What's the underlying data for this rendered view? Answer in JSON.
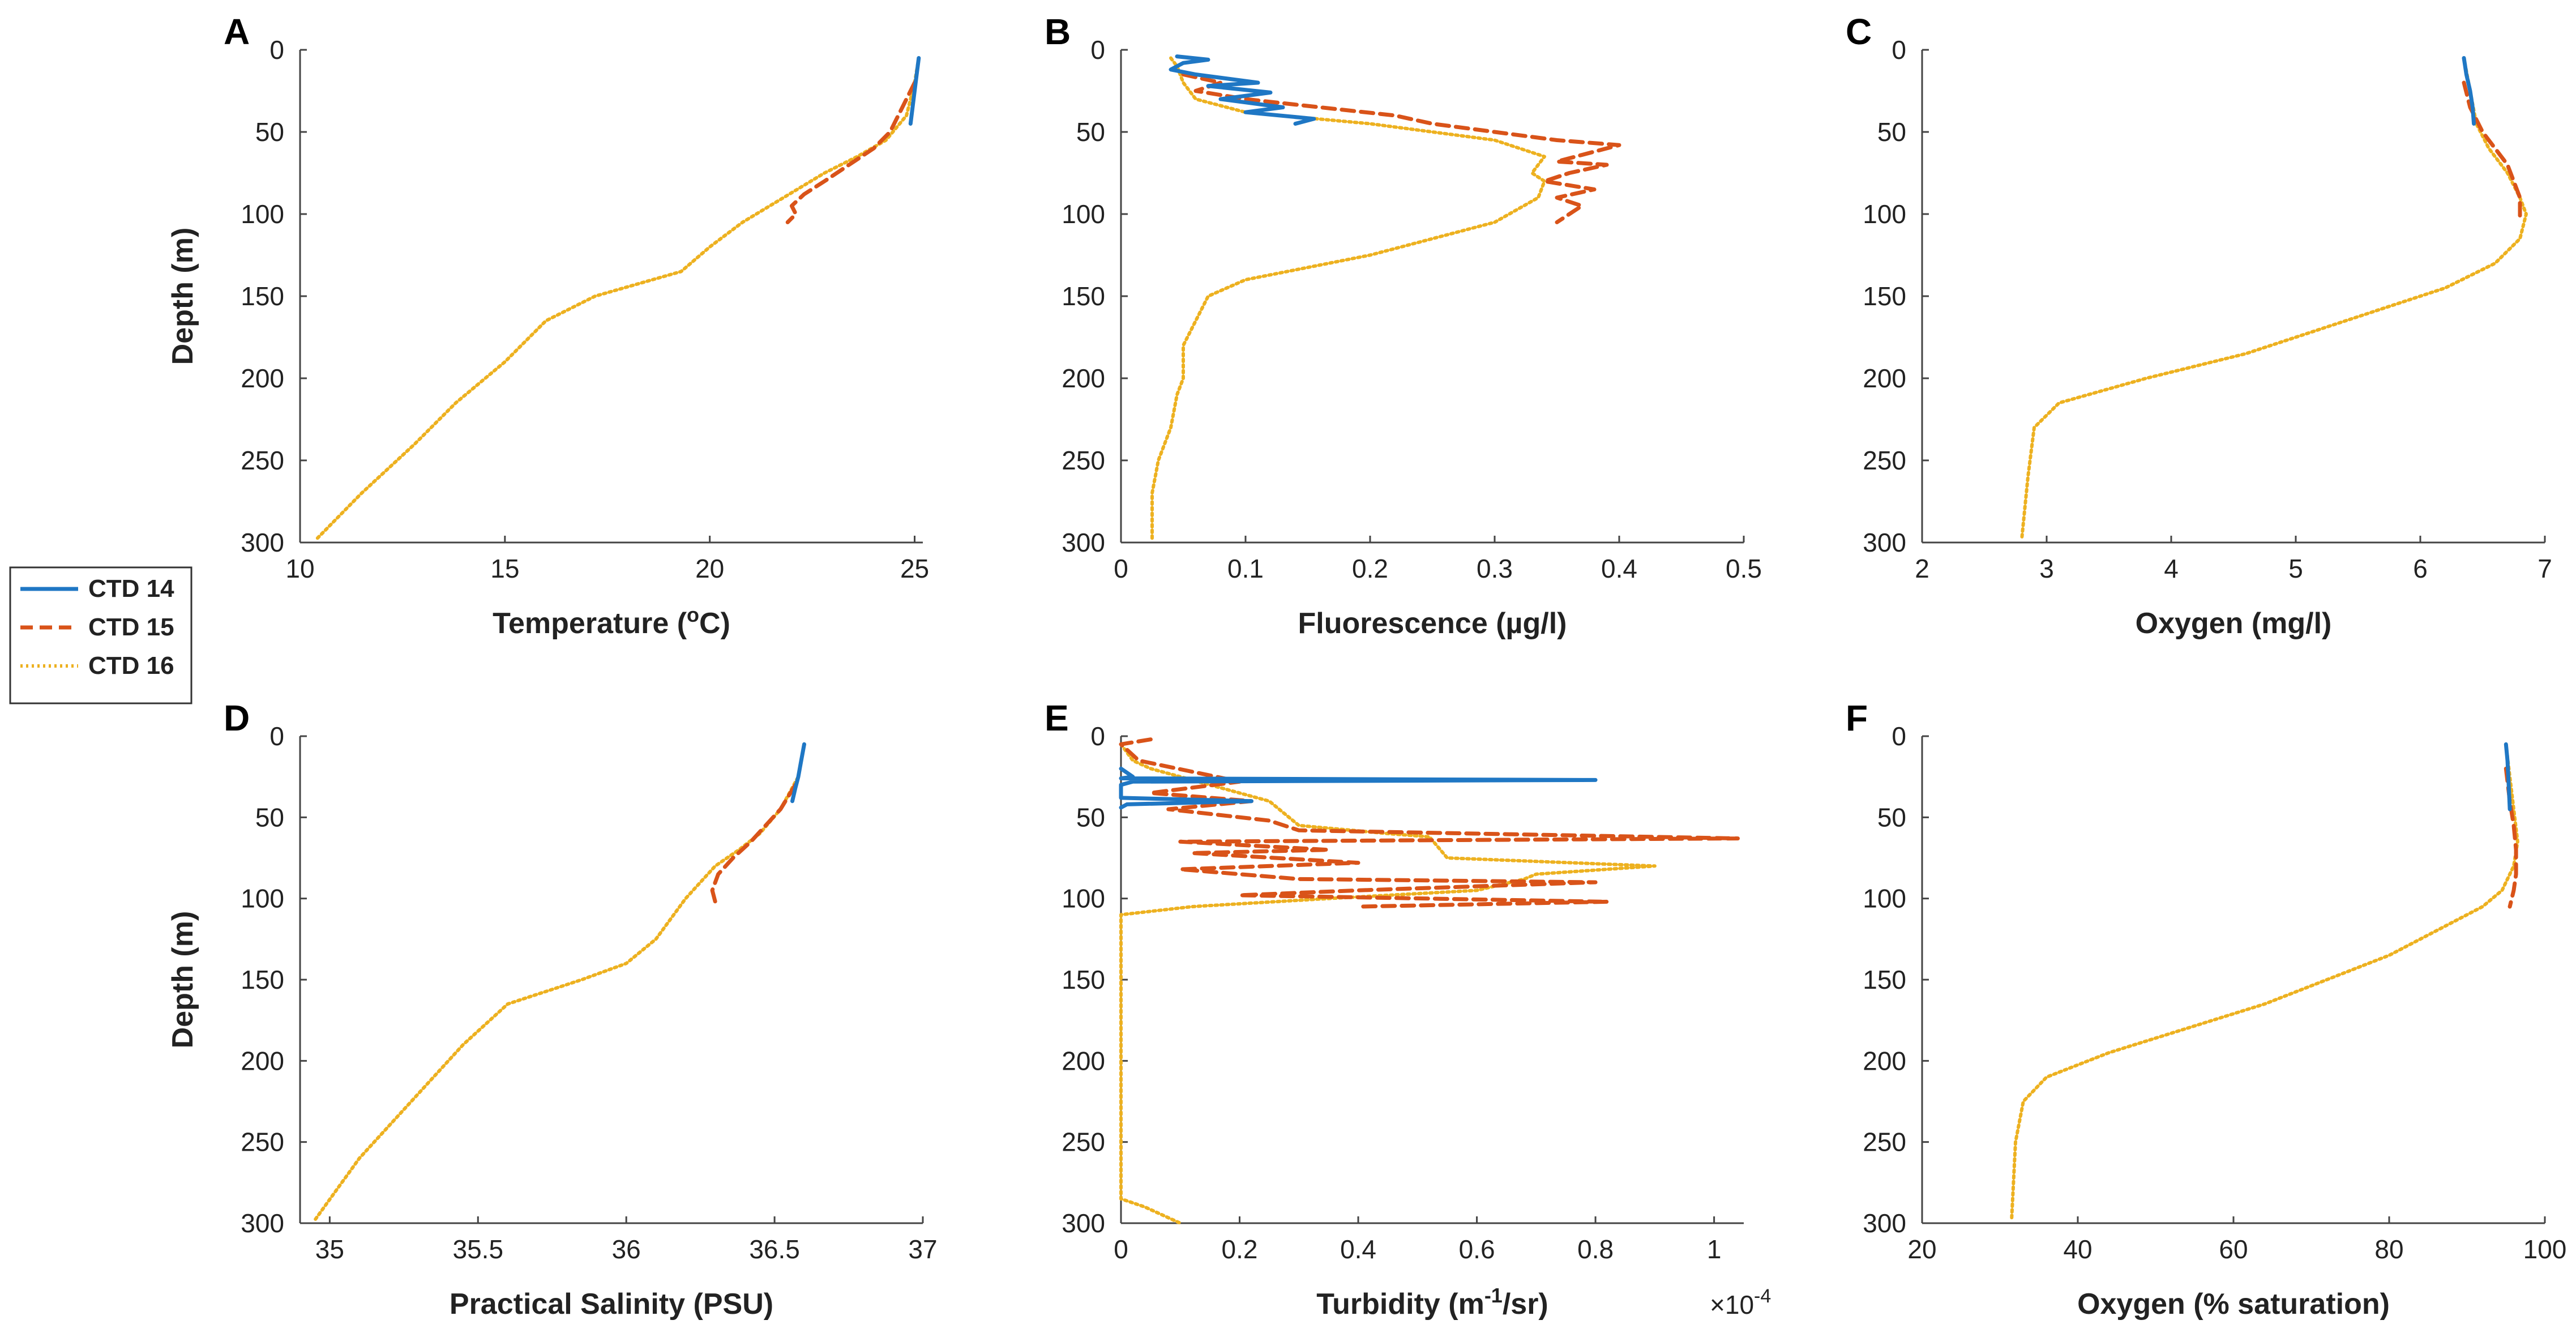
{
  "colors": {
    "ctd14": "#1f77c4",
    "ctd15": "#d95319",
    "ctd16": "#edb120",
    "axis": "#444444"
  },
  "legend": [
    {
      "label": "CTD 14",
      "series": "ctd14",
      "style": "solid"
    },
    {
      "label": "CTD 15",
      "series": "ctd15",
      "style": "dashed"
    },
    {
      "label": "CTD 16",
      "series": "ctd16",
      "style": "dotted"
    }
  ],
  "chart_data": [
    {
      "panel": "A",
      "type": "line",
      "xlabel": "Temperature (°C)",
      "xlabel_base": "Temperature (",
      "xlabel_sup": "o",
      "xlabel_tail": "C)",
      "ylabel": "Depth (m)",
      "xlim": [
        10,
        25.2
      ],
      "xticks": [
        10,
        15,
        20,
        25
      ],
      "xticklabels": [
        "10",
        "15",
        "20",
        "25"
      ],
      "ylim": [
        0,
        300
      ],
      "yticks": [
        0,
        50,
        100,
        150,
        200,
        250,
        300
      ],
      "yreversed": true,
      "series": [
        {
          "name": "CTD 14",
          "key": "ctd14",
          "x": [
            25.1,
            25.05,
            25.0,
            24.95,
            24.9
          ],
          "depth": [
            5,
            15,
            25,
            35,
            45
          ]
        },
        {
          "name": "CTD 15",
          "key": "ctd15",
          "x": [
            25.0,
            24.8,
            24.6,
            24.4,
            24.0,
            23.4,
            22.8,
            22.3,
            22.0,
            22.1,
            21.9
          ],
          "depth": [
            20,
            30,
            40,
            50,
            60,
            70,
            80,
            88,
            95,
            100,
            105
          ]
        },
        {
          "name": "CTD 16",
          "key": "ctd16",
          "x": [
            25.1,
            25.0,
            24.8,
            24.3,
            23.6,
            22.8,
            21.8,
            20.8,
            20.0,
            19.3,
            17.2,
            16.0,
            15.0,
            13.8,
            12.8,
            11.5,
            10.4
          ],
          "depth": [
            5,
            20,
            40,
            55,
            65,
            75,
            90,
            105,
            120,
            135,
            150,
            165,
            190,
            215,
            240,
            270,
            298
          ]
        }
      ]
    },
    {
      "panel": "B",
      "type": "line",
      "xlabel": "Fluorescence (µg/l)",
      "ylabel": "",
      "xlim": [
        0,
        0.5
      ],
      "xticks": [
        0,
        0.1,
        0.2,
        0.3,
        0.4,
        0.5
      ],
      "xticklabels": [
        "0",
        "0.1",
        "0.2",
        "0.3",
        "0.4",
        "0.5"
      ],
      "ylim": [
        0,
        300
      ],
      "yticks": [
        0,
        50,
        100,
        150,
        200,
        250,
        300
      ],
      "yreversed": true,
      "series": [
        {
          "name": "CTD 14",
          "key": "ctd14",
          "x": [
            0.045,
            0.07,
            0.05,
            0.04,
            0.06,
            0.11,
            0.07,
            0.12,
            0.08,
            0.13,
            0.1,
            0.155,
            0.14
          ],
          "depth": [
            4,
            6,
            8,
            12,
            15,
            20,
            22,
            26,
            30,
            35,
            38,
            42,
            45
          ]
        },
        {
          "name": "CTD 15",
          "key": "ctd15",
          "x": [
            0.05,
            0.08,
            0.06,
            0.1,
            0.16,
            0.22,
            0.25,
            0.3,
            0.35,
            0.4,
            0.38,
            0.35,
            0.39,
            0.36,
            0.34,
            0.38,
            0.35,
            0.37,
            0.35
          ],
          "depth": [
            15,
            20,
            25,
            30,
            35,
            40,
            45,
            50,
            55,
            58,
            62,
            68,
            70,
            75,
            80,
            85,
            90,
            95,
            105
          ]
        },
        {
          "name": "CTD 16",
          "key": "ctd16",
          "x": [
            0.04,
            0.045,
            0.05,
            0.06,
            0.1,
            0.2,
            0.3,
            0.34,
            0.33,
            0.34,
            0.335,
            0.3,
            0.2,
            0.1,
            0.07,
            0.06,
            0.05,
            0.05,
            0.045,
            0.04,
            0.03,
            0.025,
            0.025
          ],
          "depth": [
            5,
            10,
            20,
            30,
            38,
            45,
            55,
            65,
            75,
            80,
            90,
            105,
            125,
            140,
            150,
            165,
            180,
            200,
            210,
            230,
            250,
            270,
            298
          ]
        }
      ]
    },
    {
      "panel": "C",
      "type": "line",
      "xlabel": "Oxygen (mg/l)",
      "ylabel": "",
      "xlim": [
        2,
        7
      ],
      "xticks": [
        2,
        3,
        4,
        5,
        6,
        7
      ],
      "xticklabels": [
        "2",
        "3",
        "4",
        "5",
        "6",
        "7"
      ],
      "ylim": [
        0,
        300
      ],
      "yticks": [
        0,
        50,
        100,
        150,
        200,
        250,
        300
      ],
      "yreversed": true,
      "series": [
        {
          "name": "CTD 14",
          "key": "ctd14",
          "x": [
            6.35,
            6.37,
            6.4,
            6.42,
            6.43
          ],
          "depth": [
            5,
            15,
            25,
            35,
            45
          ]
        },
        {
          "name": "CTD 15",
          "key": "ctd15",
          "x": [
            6.35,
            6.4,
            6.5,
            6.6,
            6.7,
            6.75,
            6.8,
            6.8
          ],
          "depth": [
            20,
            35,
            50,
            60,
            70,
            80,
            90,
            105
          ]
        },
        {
          "name": "CTD 16",
          "key": "ctd16",
          "x": [
            6.35,
            6.4,
            6.45,
            6.55,
            6.7,
            6.8,
            6.85,
            6.8,
            6.6,
            6.2,
            5.8,
            5.2,
            4.6,
            3.8,
            3.1,
            2.9,
            2.85,
            2.8
          ],
          "depth": [
            5,
            25,
            45,
            60,
            75,
            90,
            100,
            115,
            130,
            145,
            155,
            170,
            185,
            200,
            215,
            230,
            260,
            298
          ]
        }
      ]
    },
    {
      "panel": "D",
      "type": "line",
      "xlabel": "Practical Salinity (PSU)",
      "ylabel": "Depth (m)",
      "xlim": [
        34.9,
        37
      ],
      "xticks": [
        35,
        35.5,
        36,
        36.5,
        37
      ],
      "xticklabels": [
        "35",
        "35.5",
        "36",
        "36.5",
        "37"
      ],
      "ylim": [
        0,
        300
      ],
      "yticks": [
        0,
        50,
        100,
        150,
        200,
        250,
        300
      ],
      "yreversed": true,
      "series": [
        {
          "name": "CTD 14",
          "key": "ctd14",
          "x": [
            36.6,
            36.59,
            36.58,
            36.57,
            36.56
          ],
          "depth": [
            5,
            15,
            25,
            32,
            40
          ]
        },
        {
          "name": "CTD 15",
          "key": "ctd15",
          "x": [
            36.57,
            36.52,
            36.47,
            36.42,
            36.36,
            36.31,
            36.29,
            36.3
          ],
          "depth": [
            30,
            45,
            55,
            65,
            75,
            85,
            95,
            102
          ]
        },
        {
          "name": "CTD 16",
          "key": "ctd16",
          "x": [
            36.6,
            36.58,
            36.52,
            36.45,
            36.38,
            36.3,
            36.2,
            36.1,
            36.0,
            35.85,
            35.6,
            35.45,
            35.3,
            35.1,
            34.95
          ],
          "depth": [
            5,
            25,
            45,
            60,
            70,
            80,
            100,
            125,
            140,
            150,
            165,
            190,
            220,
            260,
            298
          ]
        }
      ]
    },
    {
      "panel": "E",
      "type": "line",
      "xlabel": "Turbidity (m⁻¹/sr)",
      "xlabel_base": "Turbidity (m",
      "xlabel_sup": "-1",
      "xlabel_tail": "/sr)",
      "x_multiplier": "×10⁻⁴",
      "x_multiplier_base": "×10",
      "x_multiplier_sup": "-4",
      "ylabel": "",
      "xlim": [
        0,
        1.05
      ],
      "xticks": [
        0,
        0.2,
        0.4,
        0.6,
        0.8,
        1
      ],
      "xticklabels": [
        "0",
        "0.2",
        "0.4",
        "0.6",
        "0.8",
        "1"
      ],
      "ylim": [
        0,
        300
      ],
      "yticks": [
        0,
        50,
        100,
        150,
        200,
        250,
        300
      ],
      "yreversed": true,
      "series": [
        {
          "name": "CTD 14",
          "key": "ctd14",
          "x": [
            0.0,
            0.02,
            0.0,
            0.8,
            0.02,
            0.0,
            0.0,
            0.22,
            0.01,
            0.0
          ],
          "depth": [
            20,
            25,
            26,
            27,
            28,
            30,
            38,
            40,
            42,
            44
          ]
        },
        {
          "name": "CTD 15",
          "key": "ctd15",
          "x": [
            0.05,
            0.0,
            0.03,
            0.2,
            0.05,
            0.22,
            0.08,
            0.25,
            0.3,
            1.04,
            0.1,
            0.35,
            0.12,
            0.4,
            0.1,
            0.3,
            0.8,
            0.4,
            0.2,
            0.82,
            0.4
          ],
          "depth": [
            2,
            5,
            15,
            28,
            35,
            40,
            45,
            52,
            58,
            63,
            65,
            70,
            72,
            78,
            82,
            88,
            90,
            95,
            98,
            102,
            105
          ]
        },
        {
          "name": "CTD 16",
          "key": "ctd16",
          "x": [
            0.0,
            0.02,
            0.05,
            0.15,
            0.25,
            0.3,
            0.45,
            0.52,
            0.55,
            0.9,
            0.7,
            0.68,
            0.6,
            0.35,
            0.12,
            0.0,
            0.0,
            0.0,
            0.0,
            0.04,
            0.1
          ],
          "depth": [
            5,
            15,
            20,
            30,
            40,
            55,
            60,
            62,
            75,
            80,
            85,
            88,
            95,
            100,
            105,
            110,
            150,
            250,
            285,
            290,
            300
          ]
        }
      ]
    },
    {
      "panel": "F",
      "type": "line",
      "xlabel": "Oxygen (% saturation)",
      "ylabel": "",
      "xlim": [
        20,
        100
      ],
      "xticks": [
        20,
        40,
        60,
        80,
        100
      ],
      "xticklabels": [
        "20",
        "40",
        "60",
        "80",
        "100"
      ],
      "ylim": [
        0,
        300
      ],
      "yticks": [
        0,
        50,
        100,
        150,
        200,
        250,
        300
      ],
      "yreversed": true,
      "series": [
        {
          "name": "CTD 14",
          "key": "ctd14",
          "x": [
            95.0,
            95.2,
            95.3,
            95.4,
            95.5
          ],
          "depth": [
            5,
            15,
            25,
            35,
            45
          ]
        },
        {
          "name": "CTD 15",
          "key": "ctd15",
          "x": [
            95.0,
            95.5,
            96.0,
            96.3,
            96.3,
            96.0,
            95.5
          ],
          "depth": [
            20,
            40,
            55,
            70,
            85,
            95,
            105
          ]
        },
        {
          "name": "CTD 16",
          "key": "ctd16",
          "x": [
            95.0,
            95.5,
            96.0,
            96.5,
            96.0,
            94.5,
            92.0,
            86.0,
            80.0,
            72.0,
            64.0,
            54.0,
            44.0,
            36.0,
            33.0,
            32.0,
            31.5
          ],
          "depth": [
            5,
            25,
            45,
            65,
            80,
            95,
            105,
            120,
            135,
            150,
            165,
            180,
            195,
            210,
            225,
            250,
            298
          ]
        }
      ]
    }
  ]
}
